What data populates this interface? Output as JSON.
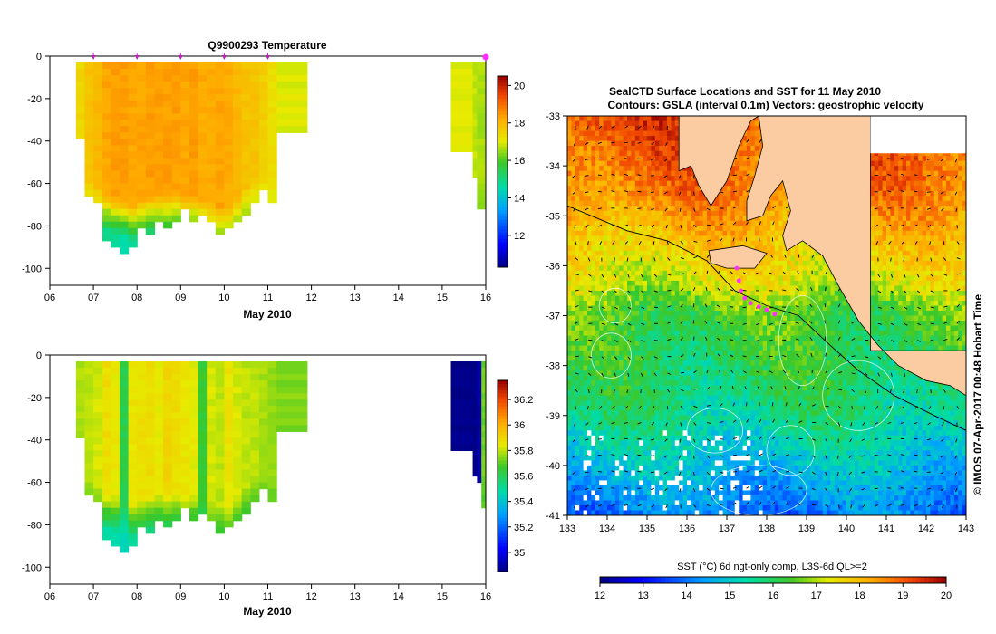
{
  "chart_data": [
    {
      "type": "heatmap",
      "title": "Q9900293  Temperature",
      "xlabel": "May 2010",
      "ylabel": "",
      "x_tick_labels": [
        "06",
        "07",
        "08",
        "09",
        "10",
        "11",
        "12",
        "13",
        "14",
        "15",
        "16"
      ],
      "xlim": [
        6,
        16
      ],
      "ylim": [
        -108,
        0
      ],
      "y_ticks": [
        0,
        -20,
        -40,
        -60,
        -80,
        -100
      ],
      "colorbar": {
        "range": [
          10.3,
          20.5
        ],
        "ticks": [
          12,
          14,
          16,
          18,
          20
        ]
      },
      "profile_marker_days": [
        7.0,
        8.0,
        9.0,
        10.0,
        11.0,
        16.0
      ],
      "profiles": [
        {
          "x0": 6.6,
          "x1": 6.8,
          "depth": 37,
          "v": 17.4,
          "mix": 60,
          "deep": 16
        },
        {
          "x0": 6.8,
          "x1": 7.0,
          "depth": 64,
          "v": 17.8,
          "mix": 58,
          "deep": 15.8
        },
        {
          "x0": 7.0,
          "x1": 7.2,
          "depth": 67,
          "v": 18.0,
          "mix": 60,
          "deep": 15.6
        },
        {
          "x0": 7.2,
          "x1": 7.4,
          "depth": 85,
          "v": 18.3,
          "mix": 63,
          "deep": 15.0
        },
        {
          "x0": 7.4,
          "x1": 7.6,
          "depth": 89,
          "v": 18.4,
          "mix": 65,
          "deep": 14.8
        },
        {
          "x0": 7.6,
          "x1": 7.8,
          "depth": 93,
          "v": 18.4,
          "mix": 66,
          "deep": 14.6
        },
        {
          "x0": 7.8,
          "x1": 8.0,
          "depth": 89,
          "v": 18.3,
          "mix": 68,
          "deep": 14.8
        },
        {
          "x0": 8.0,
          "x1": 8.2,
          "depth": 80,
          "v": 18.3,
          "mix": 66,
          "deep": 15.0
        },
        {
          "x0": 8.2,
          "x1": 8.4,
          "depth": 82,
          "v": 18.4,
          "mix": 64,
          "deep": 15.0
        },
        {
          "x0": 8.4,
          "x1": 8.6,
          "depth": 78,
          "v": 18.4,
          "mix": 63,
          "deep": 15.2
        },
        {
          "x0": 8.6,
          "x1": 8.8,
          "depth": 79,
          "v": 18.4,
          "mix": 63,
          "deep": 15.2
        },
        {
          "x0": 8.8,
          "x1": 9.0,
          "depth": 76,
          "v": 18.4,
          "mix": 62,
          "deep": 15.3
        },
        {
          "x0": 9.0,
          "x1": 9.2,
          "depth": 72,
          "v": 18.3,
          "mix": 64,
          "deep": 15.4
        },
        {
          "x0": 9.2,
          "x1": 9.4,
          "depth": 77,
          "v": 18.4,
          "mix": 64,
          "deep": 15.3
        },
        {
          "x0": 9.4,
          "x1": 9.6,
          "depth": 75,
          "v": 18.2,
          "mix": 66,
          "deep": 15.4
        },
        {
          "x0": 9.6,
          "x1": 9.8,
          "depth": 76,
          "v": 18.2,
          "mix": 68,
          "deep": 15.4
        },
        {
          "x0": 9.8,
          "x1": 10.0,
          "depth": 82,
          "v": 18.3,
          "mix": 70,
          "deep": 15.3
        },
        {
          "x0": 10.0,
          "x1": 10.2,
          "depth": 80,
          "v": 18.2,
          "mix": 70,
          "deep": 15.3
        },
        {
          "x0": 10.2,
          "x1": 10.4,
          "depth": 78,
          "v": 18.0,
          "mix": 66,
          "deep": 15.5
        },
        {
          "x0": 10.4,
          "x1": 10.6,
          "depth": 74,
          "v": 17.8,
          "mix": 60,
          "deep": 16.0
        },
        {
          "x0": 10.6,
          "x1": 10.8,
          "depth": 67,
          "v": 17.8,
          "mix": 58,
          "deep": 16.2
        },
        {
          "x0": 10.8,
          "x1": 11.0,
          "depth": 62,
          "v": 17.6,
          "mix": 55,
          "deep": 16.4
        },
        {
          "x0": 11.0,
          "x1": 11.2,
          "depth": 69,
          "v": 17.3,
          "mix": 56,
          "deep": 16.6
        },
        {
          "x0": 11.2,
          "x1": 11.9,
          "depth": 35,
          "v": 17.0,
          "mix": 40,
          "deep": 16.8
        },
        {
          "x0": 15.2,
          "x1": 15.7,
          "depth": 43,
          "v": 17.0,
          "mix": 50,
          "deep": 16.8
        },
        {
          "x0": 15.7,
          "x1": 15.8,
          "depth": 55,
          "v": 16.8,
          "mix": 60,
          "deep": 16.6
        },
        {
          "x0": 15.8,
          "x1": 16.0,
          "depth": 72,
          "v": 16.6,
          "mix": 65,
          "deep": 16.2
        }
      ]
    },
    {
      "type": "heatmap",
      "title": "",
      "xlabel": "May 2010",
      "ylabel": "",
      "x_tick_labels": [
        "06",
        "07",
        "08",
        "09",
        "10",
        "11",
        "12",
        "13",
        "14",
        "15",
        "16"
      ],
      "xlim": [
        6,
        16
      ],
      "ylim": [
        -108,
        0
      ],
      "y_ticks": [
        0,
        -20,
        -40,
        -60,
        -80,
        -100
      ],
      "colorbar": {
        "range": [
          34.85,
          36.35
        ],
        "ticks": [
          35,
          35.2,
          35.4,
          35.6,
          35.8,
          36,
          36.2
        ]
      },
      "profiles": [
        {
          "x0": 6.6,
          "x1": 6.8,
          "depth": 37,
          "v": 35.78,
          "mix": 60,
          "deep": 35.62
        },
        {
          "x0": 6.8,
          "x1": 7.0,
          "depth": 64,
          "v": 35.8,
          "mix": 58,
          "deep": 35.58
        },
        {
          "x0": 7.0,
          "x1": 7.2,
          "depth": 67,
          "v": 35.82,
          "mix": 60,
          "deep": 35.56
        },
        {
          "x0": 7.2,
          "x1": 7.4,
          "depth": 85,
          "v": 35.88,
          "mix": 63,
          "deep": 35.5
        },
        {
          "x0": 7.4,
          "x1": 7.6,
          "depth": 89,
          "v": 35.85,
          "mix": 65,
          "deep": 35.48
        },
        {
          "x0": 7.6,
          "x1": 7.8,
          "depth": 93,
          "v": 35.62,
          "mix": 66,
          "deep": 35.46
        },
        {
          "x0": 7.8,
          "x1": 8.0,
          "depth": 89,
          "v": 35.86,
          "mix": 68,
          "deep": 35.5
        },
        {
          "x0": 8.0,
          "x1": 8.2,
          "depth": 80,
          "v": 35.87,
          "mix": 66,
          "deep": 35.52
        },
        {
          "x0": 8.2,
          "x1": 8.4,
          "depth": 82,
          "v": 35.88,
          "mix": 64,
          "deep": 35.52
        },
        {
          "x0": 8.4,
          "x1": 8.6,
          "depth": 78,
          "v": 35.85,
          "mix": 63,
          "deep": 35.54
        },
        {
          "x0": 8.6,
          "x1": 8.8,
          "depth": 79,
          "v": 35.9,
          "mix": 63,
          "deep": 35.54
        },
        {
          "x0": 8.8,
          "x1": 9.0,
          "depth": 76,
          "v": 35.88,
          "mix": 62,
          "deep": 35.55
        },
        {
          "x0": 9.0,
          "x1": 9.2,
          "depth": 72,
          "v": 35.86,
          "mix": 64,
          "deep": 35.56
        },
        {
          "x0": 9.2,
          "x1": 9.4,
          "depth": 77,
          "v": 35.84,
          "mix": 64,
          "deep": 35.55
        },
        {
          "x0": 9.4,
          "x1": 9.6,
          "depth": 75,
          "v": 35.66,
          "mix": 66,
          "deep": 35.56
        },
        {
          "x0": 9.6,
          "x1": 9.8,
          "depth": 76,
          "v": 35.82,
          "mix": 68,
          "deep": 35.56
        },
        {
          "x0": 9.8,
          "x1": 10.0,
          "depth": 82,
          "v": 35.8,
          "mix": 70,
          "deep": 35.55
        },
        {
          "x0": 10.0,
          "x1": 10.2,
          "depth": 80,
          "v": 35.86,
          "mix": 70,
          "deep": 35.55
        },
        {
          "x0": 10.2,
          "x1": 10.4,
          "depth": 78,
          "v": 35.82,
          "mix": 66,
          "deep": 35.57
        },
        {
          "x0": 10.4,
          "x1": 10.6,
          "depth": 74,
          "v": 35.8,
          "mix": 60,
          "deep": 35.6
        },
        {
          "x0": 10.6,
          "x1": 10.8,
          "depth": 67,
          "v": 35.8,
          "mix": 58,
          "deep": 35.62
        },
        {
          "x0": 10.8,
          "x1": 11.0,
          "depth": 62,
          "v": 35.78,
          "mix": 55,
          "deep": 35.64
        },
        {
          "x0": 11.0,
          "x1": 11.2,
          "depth": 69,
          "v": 35.76,
          "mix": 56,
          "deep": 35.66
        },
        {
          "x0": 11.2,
          "x1": 11.9,
          "depth": 35,
          "v": 35.74,
          "mix": 40,
          "deep": 35.7
        },
        {
          "x0": 15.2,
          "x1": 15.7,
          "depth": 43,
          "v": 34.86,
          "mix": 99,
          "deep": 34.86
        },
        {
          "x0": 15.7,
          "x1": 15.8,
          "depth": 55,
          "v": 34.86,
          "mix": 99,
          "deep": 34.86
        },
        {
          "x0": 15.8,
          "x1": 15.9,
          "depth": 58,
          "v": 34.9,
          "mix": 99,
          "deep": 34.9
        },
        {
          "x0": 15.9,
          "x1": 16.0,
          "depth": 72,
          "v": 35.72,
          "mix": 60,
          "deep": 35.66
        }
      ]
    },
    {
      "type": "heatmap",
      "title": "SealCTD Surface Locations and SST for 11 May 2010",
      "subtitle": "Contours: GSLA (interval 0.1m) Vectors: geostrophic velocity",
      "xlabel": "",
      "ylabel": "",
      "x_ticks": [
        133,
        134,
        135,
        136,
        137,
        138,
        139,
        140,
        141,
        142,
        143
      ],
      "y_ticks": [
        -33,
        -34,
        -35,
        -36,
        -37,
        -38,
        -39,
        -40,
        -41
      ],
      "xlim": [
        133,
        143
      ],
      "ylim": [
        -41,
        -33
      ],
      "land_color": "#fbcba1",
      "track_color": "#ff30ff",
      "colorbar": {
        "label": "SST (°C) 6d ngt-only comp, L3S-6d QL>=2",
        "range": [
          12,
          20
        ],
        "ticks": [
          12,
          13,
          14,
          15,
          16,
          17,
          18,
          19,
          20
        ]
      },
      "sst_profile": [
        {
          "lat": -33.0,
          "sst": 19.2
        },
        {
          "lat": -34.5,
          "sst": 18.6
        },
        {
          "lat": -35.5,
          "sst": 17.8
        },
        {
          "lat": -36.3,
          "sst": 17.2
        },
        {
          "lat": -36.9,
          "sst": 16.4
        },
        {
          "lat": -38.0,
          "sst": 16.0
        },
        {
          "lat": -39.0,
          "sst": 15.6
        },
        {
          "lat": -40.0,
          "sst": 14.8
        },
        {
          "lat": -41.0,
          "sst": 14.0
        }
      ],
      "seal_track": [
        [
          137.25,
          -36.05
        ],
        [
          137.3,
          -36.3
        ],
        [
          137.35,
          -36.5
        ],
        [
          137.45,
          -36.65
        ],
        [
          137.6,
          -36.75
        ],
        [
          137.8,
          -36.82
        ],
        [
          138.0,
          -36.88
        ],
        [
          138.2,
          -36.97
        ]
      ]
    }
  ],
  "watermark": "© IMOS 07-Apr-2017 00:48 Hobart Time"
}
